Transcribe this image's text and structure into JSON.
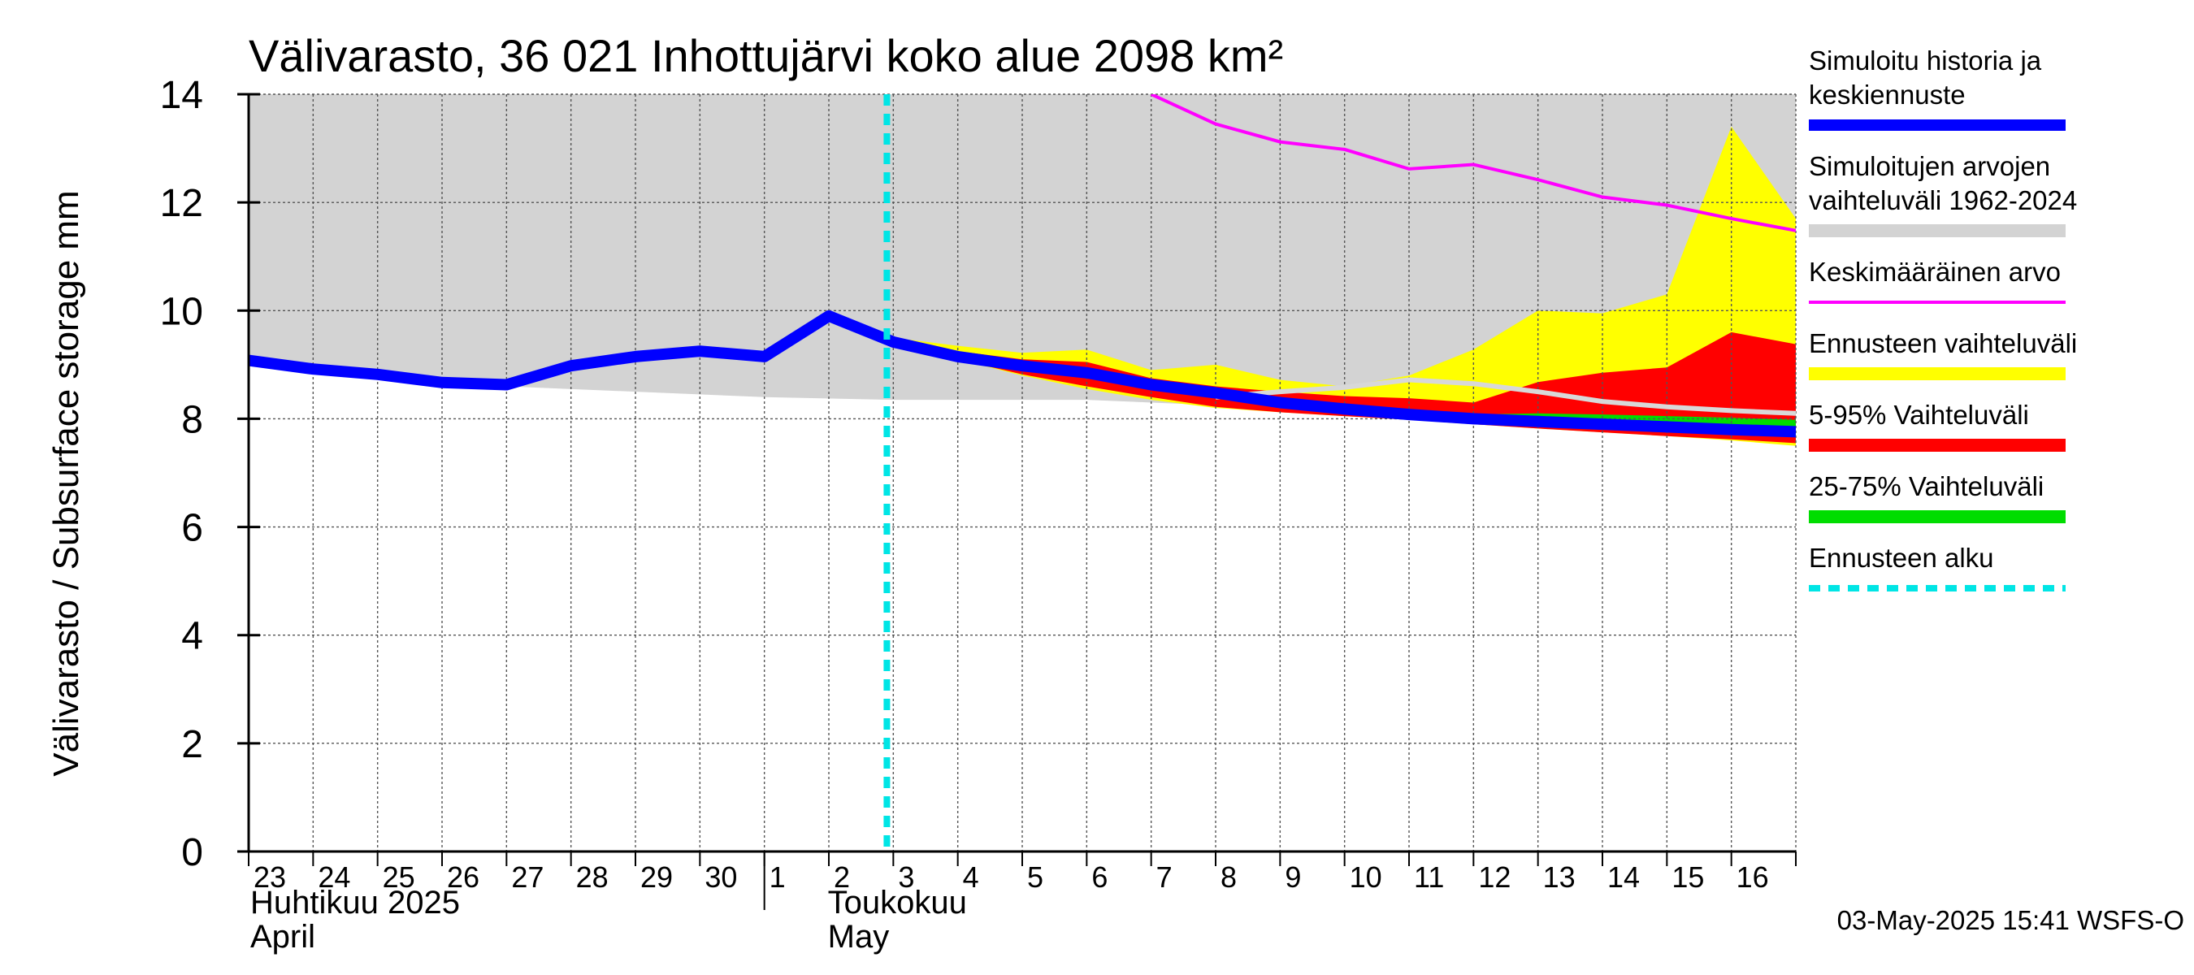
{
  "chart_data": {
    "type": "area",
    "title": "Välivarasto, 36 021 Inhottujärvi koko alue 2098 km²",
    "ylabel": "Välivarasto / Subsurface storage  mm",
    "xlabel": "",
    "ylim": [
      0,
      14
    ],
    "yticks": [
      0,
      2,
      4,
      6,
      8,
      10,
      12,
      14
    ],
    "grid": true,
    "legend_position": "right",
    "x_start": "2025-04-23",
    "x_end": "2025-05-17",
    "x_tick_labels": [
      "23",
      "24",
      "25",
      "26",
      "27",
      "28",
      "29",
      "30",
      "1",
      "2",
      "3",
      "4",
      "5",
      "6",
      "7",
      "8",
      "9",
      "10",
      "11",
      "12",
      "13",
      "14",
      "15",
      "16"
    ],
    "months": [
      {
        "name_fi": "Huhtikuu  2025",
        "name_en": "April",
        "start": "2025-04-23"
      },
      {
        "name_fi": "Toukokuu",
        "name_en": "May",
        "start": "2025-05-01"
      }
    ],
    "forecast_start": "2025-05-03",
    "timestamp": "03-May-2025 15:41 WSFS-O",
    "colors": {
      "history": "#0000ff",
      "sim_range": "#d3d3d3",
      "mean": "#ff00ff",
      "forecast_range": "#ffff00",
      "p5_95": "#ff0000",
      "p25_75": "#00dd00",
      "forecast_start": "#00e5e5",
      "light_line": "#d8d8d8"
    },
    "legend": [
      {
        "label": "Simuloitu historia ja keskiennuste",
        "lines": [
          "Simuloitu historia ja",
          "keskiennuste"
        ],
        "color": "#0000ff",
        "style": "thick"
      },
      {
        "label": "Simuloitujen arvojen vaihteluväli 1962-2024",
        "lines": [
          "Simuloitujen arvojen",
          "vaihteluväli 1962-2024"
        ],
        "color": "#d3d3d3",
        "style": "band"
      },
      {
        "label": "Keskimääräinen arvo",
        "lines": [
          "Keskimääräinen arvo"
        ],
        "color": "#ff00ff",
        "style": "thin"
      },
      {
        "label": "Ennusteen vaihteluväli",
        "lines": [
          "Ennusteen vaihteluväli"
        ],
        "color": "#ffff00",
        "style": "band"
      },
      {
        "label": "5-95% Vaihteluväli",
        "lines": [
          "5-95% Vaihteluväli"
        ],
        "color": "#ff0000",
        "style": "band"
      },
      {
        "label": "25-75% Vaihteluväli",
        "lines": [
          "25-75% Vaihteluväli"
        ],
        "color": "#00dd00",
        "style": "band"
      },
      {
        "label": "Ennusteen alku",
        "lines": [
          "Ennusteen alku"
        ],
        "color": "#00e5e5",
        "style": "dashed"
      }
    ],
    "series": [
      {
        "name": "Simuloitu historia ja keskiennuste",
        "x": [
          "2025-04-23",
          "2025-04-24",
          "2025-04-25",
          "2025-04-26",
          "2025-04-27",
          "2025-04-28",
          "2025-04-29",
          "2025-04-30",
          "2025-05-01",
          "2025-05-02",
          "2025-05-03",
          "2025-05-04",
          "2025-05-05",
          "2025-05-06",
          "2025-05-07",
          "2025-05-08",
          "2025-05-09",
          "2025-05-10",
          "2025-05-11",
          "2025-05-12",
          "2025-05-13",
          "2025-05-14",
          "2025-05-15",
          "2025-05-16",
          "2025-05-17"
        ],
        "values": [
          9.08,
          8.92,
          8.82,
          8.67,
          8.63,
          8.98,
          9.15,
          9.25,
          9.15,
          9.9,
          9.42,
          9.15,
          8.98,
          8.85,
          8.63,
          8.48,
          8.3,
          8.18,
          8.08,
          8.0,
          7.95,
          7.9,
          7.85,
          7.8,
          7.76
        ]
      },
      {
        "name": "Simuloitujen arvojen vaihteluväli 1962-2024",
        "x": [
          "2025-04-23",
          "2025-04-27",
          "2025-05-01",
          "2025-05-03",
          "2025-05-06",
          "2025-05-09",
          "2025-05-17"
        ],
        "upper": [
          14,
          14,
          14,
          14,
          14,
          14,
          14
        ],
        "lower": [
          9.1,
          8.6,
          8.4,
          8.35,
          8.35,
          8.2,
          8.1
        ]
      },
      {
        "name": "Keskimääräinen arvo",
        "x": [
          "2025-05-07",
          "2025-05-08",
          "2025-05-09",
          "2025-05-10",
          "2025-05-11",
          "2025-05-12",
          "2025-05-13",
          "2025-05-14",
          "2025-05-15",
          "2025-05-16",
          "2025-05-17"
        ],
        "values": [
          14.0,
          13.45,
          13.12,
          12.98,
          12.62,
          12.7,
          12.42,
          12.1,
          11.95,
          11.7,
          11.48
        ]
      },
      {
        "name": "Ennusteen vaihteluväli",
        "x": [
          "2025-05-03",
          "2025-05-04",
          "2025-05-05",
          "2025-05-06",
          "2025-05-07",
          "2025-05-08",
          "2025-05-09",
          "2025-05-10",
          "2025-05-11",
          "2025-05-12",
          "2025-05-13",
          "2025-05-14",
          "2025-05-15",
          "2025-05-16",
          "2025-05-17"
        ],
        "upper": [
          9.5,
          9.35,
          9.22,
          9.28,
          8.9,
          9.0,
          8.72,
          8.6,
          8.8,
          9.28,
          10.0,
          9.95,
          10.3,
          13.4,
          11.7
        ],
        "lower": [
          9.42,
          9.1,
          8.8,
          8.55,
          8.35,
          8.2,
          8.12,
          8.05,
          7.98,
          7.9,
          7.82,
          7.75,
          7.68,
          7.6,
          7.5
        ]
      },
      {
        "name": "5-95% Vaihteluväli",
        "x": [
          "2025-05-03",
          "2025-05-04",
          "2025-05-05",
          "2025-05-06",
          "2025-05-07",
          "2025-05-08",
          "2025-05-09",
          "2025-05-10",
          "2025-05-11",
          "2025-05-12",
          "2025-05-13",
          "2025-05-14",
          "2025-05-15",
          "2025-05-16",
          "2025-05-17"
        ],
        "upper": [
          9.42,
          9.25,
          9.1,
          9.05,
          8.75,
          8.6,
          8.5,
          8.42,
          8.38,
          8.3,
          8.68,
          8.85,
          8.95,
          9.6,
          9.38
        ],
        "lower": [
          9.42,
          9.1,
          8.82,
          8.6,
          8.4,
          8.22,
          8.12,
          8.05,
          7.98,
          7.9,
          7.82,
          7.75,
          7.68,
          7.62,
          7.55
        ]
      },
      {
        "name": "25-75% Vaihteluväli",
        "x": [
          "2025-05-03",
          "2025-05-04",
          "2025-05-05",
          "2025-05-06",
          "2025-05-07",
          "2025-05-08",
          "2025-05-09",
          "2025-05-10",
          "2025-05-11",
          "2025-05-12",
          "2025-05-13",
          "2025-05-14",
          "2025-05-15",
          "2025-05-16",
          "2025-05-17"
        ],
        "upper": [
          9.42,
          9.2,
          9.05,
          8.92,
          8.68,
          8.52,
          8.38,
          8.25,
          8.15,
          8.08,
          8.1,
          8.08,
          8.05,
          8.02,
          7.98
        ],
        "lower": [
          9.42,
          9.12,
          8.92,
          8.78,
          8.56,
          8.42,
          8.24,
          8.12,
          8.02,
          7.94,
          7.87,
          7.82,
          7.77,
          7.72,
          7.68
        ]
      },
      {
        "name": "light",
        "x": [
          "2025-05-08",
          "2025-05-09",
          "2025-05-10",
          "2025-05-11",
          "2025-05-12",
          "2025-05-13",
          "2025-05-14",
          "2025-05-15",
          "2025-05-16",
          "2025-05-17"
        ],
        "values": [
          8.4,
          8.5,
          8.58,
          8.72,
          8.65,
          8.5,
          8.32,
          8.22,
          8.15,
          8.1
        ]
      }
    ]
  }
}
